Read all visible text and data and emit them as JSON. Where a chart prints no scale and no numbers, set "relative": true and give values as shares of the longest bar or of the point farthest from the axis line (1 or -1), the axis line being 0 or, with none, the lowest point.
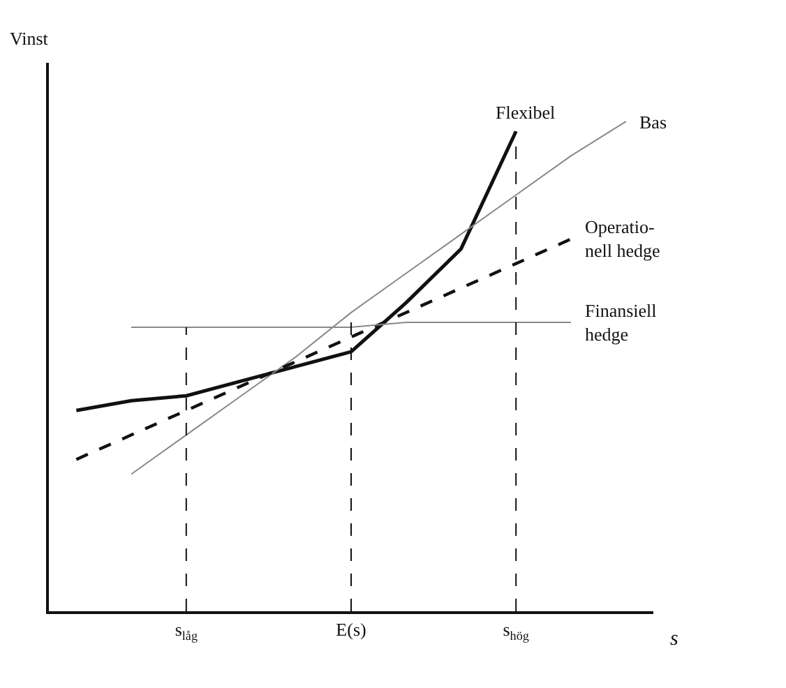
{
  "chart_data": {
    "type": "line",
    "relative": true,
    "xlabel": "s",
    "ylabel": "Vinst",
    "grid": false,
    "legend": false,
    "marker": "none",
    "categories": [
      null,
      null,
      "s$_{låg}$",
      null,
      null,
      "E(s)",
      null,
      null,
      "s$_{hög}$",
      null,
      null
    ],
    "series": [
      {
        "name": "Flexibel",
        "color": "#111111",
        "line_style": "solid",
        "values": [
          0.41,
          0.43,
          0.44,
          0.47,
          0.5,
          0.53,
          0.63,
          0.74,
          0.98,
          null,
          null
        ]
      },
      {
        "name": "Bas",
        "color": "#888888",
        "line_style": "solid",
        "values": [
          null,
          0.28,
          0.36,
          0.44,
          0.52,
          0.61,
          0.69,
          0.77,
          0.85,
          0.93,
          1.0
        ]
      },
      {
        "name": "Operatio-\nnell hedge",
        "color": "#111111",
        "line_style": "dashed",
        "values": [
          0.31,
          0.36,
          0.41,
          0.46,
          0.51,
          0.56,
          0.61,
          0.66,
          0.71,
          0.76,
          null
        ]
      },
      {
        "name": "Finansiell\nhedge",
        "color": "#888888",
        "line_style": "solid",
        "values": [
          null,
          0.58,
          0.58,
          0.58,
          0.58,
          0.58,
          0.59,
          0.59,
          0.59,
          0.59,
          null
        ]
      }
    ],
    "ref_lines": [
      {
        "axis": "x",
        "value": "s$_{låg}$",
        "label": null,
        "line_style": "dashed",
        "color": "#111111"
      },
      {
        "axis": "x",
        "value": "E(s)",
        "label": null,
        "line_style": "dashed",
        "color": "#111111"
      },
      {
        "axis": "x",
        "value": "s$_{hög}$",
        "label": null,
        "line_style": "dashed",
        "color": "#111111"
      }
    ]
  }
}
